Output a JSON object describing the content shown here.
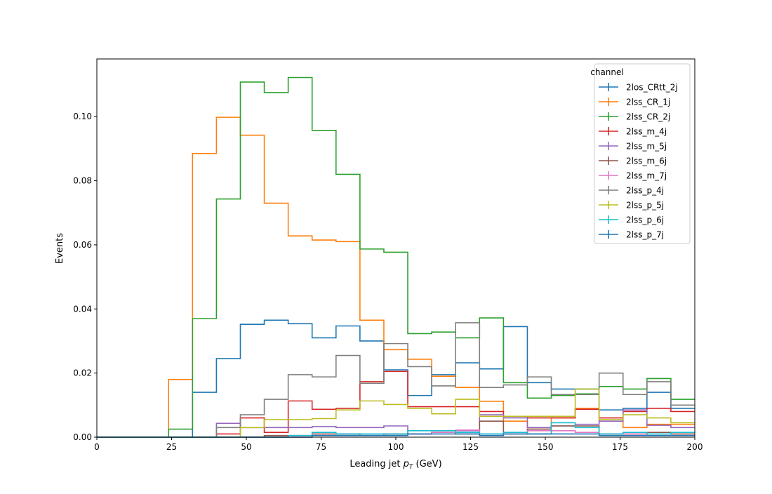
{
  "chart_data": {
    "type": "histogram-step",
    "title": "",
    "xlabel_prefix": "Leading jet",
    "xlabel_symbol": "p",
    "xlabel_subscript": "T",
    "xlabel_unit": "(GeV)",
    "ylabel": "Events",
    "xlim": [
      0,
      200
    ],
    "ylim": [
      0,
      0.118
    ],
    "x_ticks": [
      0,
      25,
      50,
      75,
      100,
      125,
      150,
      175,
      200
    ],
    "x_tick_labels": [
      "0",
      "25",
      "50",
      "75",
      "100",
      "125",
      "150",
      "175",
      "200"
    ],
    "y_ticks": [
      0,
      0.02,
      0.04,
      0.06,
      0.08,
      0.1
    ],
    "y_tick_labels": [
      "0.00",
      "0.02",
      "0.04",
      "0.06",
      "0.08",
      "0.10"
    ],
    "grid": false,
    "legend": {
      "title": "channel",
      "placement": "top-right"
    },
    "bin_edges": [
      0,
      8,
      16,
      24,
      32,
      40,
      48,
      56,
      64,
      72,
      80,
      88,
      96,
      104,
      112,
      120,
      128,
      136,
      144,
      152,
      160,
      168,
      176,
      184,
      192,
      200
    ],
    "series": [
      {
        "name": "2los_CRtt_2j",
        "color": "#1f77b4",
        "values": [
          0,
          0,
          0,
          0,
          0.014,
          0.0245,
          0.0352,
          0.0365,
          0.0354,
          0.031,
          0.0347,
          0.03,
          0.021,
          0.013,
          0.0195,
          0.0232,
          0.0213,
          0.0345,
          0.017,
          0.015,
          0.015,
          0.0085,
          0.009,
          0.014,
          0.009
        ]
      },
      {
        "name": "2lss_CR_1j",
        "color": "#ff7f0e",
        "values": [
          0,
          0,
          0,
          0.018,
          0.0885,
          0.0998,
          0.0942,
          0.073,
          0.0628,
          0.0615,
          0.061,
          0.0365,
          0.0273,
          0.0243,
          0.019,
          0.0155,
          0.0112,
          0.005,
          0.003,
          0.006,
          0.009,
          0.005,
          0.003,
          0.004,
          0.004
        ]
      },
      {
        "name": "2lss_CR_2j",
        "color": "#2ca02c",
        "values": [
          0,
          0,
          0,
          0.0025,
          0.037,
          0.0743,
          0.1108,
          0.1075,
          0.1122,
          0.0957,
          0.082,
          0.0587,
          0.0577,
          0.0323,
          0.0328,
          0.031,
          0.0372,
          0.017,
          0.0122,
          0.013,
          0.0135,
          0.0158,
          0.015,
          0.0183,
          0.0118
        ]
      },
      {
        "name": "2lss_m_4j",
        "color": "#d62728",
        "values": [
          0,
          0,
          0,
          0,
          0,
          0.001,
          0.006,
          0.0015,
          0.0113,
          0.0087,
          0.009,
          0.0173,
          0.0205,
          0.0095,
          0.0095,
          0.0095,
          0.008,
          0.0065,
          0.006,
          0.006,
          0.0087,
          0.006,
          0.008,
          0.009,
          0.008
        ]
      },
      {
        "name": "2lss_m_5j",
        "color": "#9467bd",
        "values": [
          0,
          0,
          0,
          0,
          0,
          0.0043,
          0.003,
          0.003,
          0.003,
          0.0033,
          0.003,
          0.003,
          0.0035,
          0.001,
          0.0015,
          0.002,
          0.007,
          0.006,
          0.003,
          0.0035,
          0.004,
          0.005,
          0.0085,
          0.0037,
          0.003
        ]
      },
      {
        "name": "2lss_m_6j",
        "color": "#8c564b",
        "values": [
          0,
          0,
          0,
          0,
          0,
          0,
          0,
          0.0005,
          0.0005,
          0.001,
          0.001,
          0.0005,
          0.001,
          0.001,
          0.0015,
          0.001,
          0.005,
          0.001,
          0.0025,
          0.0035,
          0.0035,
          0.001,
          0.001,
          0.0015,
          0.001
        ]
      },
      {
        "name": "2lss_m_7j",
        "color": "#e377c2",
        "values": [
          0,
          0,
          0,
          0,
          0,
          0,
          0,
          0,
          0,
          0.0005,
          0.0005,
          0.0005,
          0.0005,
          0.001,
          0.0015,
          0.0022,
          0.001,
          0.001,
          0.002,
          0.002,
          0.0015,
          0.001,
          0.001,
          0.0005,
          0.0005
        ]
      },
      {
        "name": "2lss_p_4j",
        "color": "#7f7f7f",
        "values": [
          0,
          0,
          0,
          0,
          0,
          0.003,
          0.007,
          0.0118,
          0.0195,
          0.0188,
          0.0255,
          0.0168,
          0.0292,
          0.022,
          0.016,
          0.0357,
          0.0155,
          0.0163,
          0.0188,
          0.0133,
          0.0133,
          0.02,
          0.0133,
          0.0173,
          0.01
        ]
      },
      {
        "name": "2lss_p_5j",
        "color": "#bcbd22",
        "values": [
          0,
          0,
          0,
          0,
          0,
          0,
          0.003,
          0.0055,
          0.0055,
          0.0058,
          0.0085,
          0.0113,
          0.0102,
          0.009,
          0.0073,
          0.0118,
          0.0065,
          0.0065,
          0.0065,
          0.0065,
          0.015,
          0.0055,
          0.007,
          0.006,
          0.0045
        ]
      },
      {
        "name": "2lss_p_6j",
        "color": "#17becf",
        "values": [
          0,
          0,
          0,
          0,
          0,
          0,
          0,
          0,
          0.0005,
          0.0015,
          0.001,
          0.001,
          0.001,
          0.002,
          0.002,
          0.0015,
          0.001,
          0.0015,
          0.001,
          0.0045,
          0.003,
          0.001,
          0.0015,
          0.001,
          0.0015
        ]
      },
      {
        "name": "2lss_p_7j",
        "color": "#1f77b4",
        "values": [
          0,
          0,
          0,
          0,
          0,
          0,
          0,
          0,
          0,
          0.0005,
          0.0005,
          0.0005,
          0.0005,
          0.001,
          0.001,
          0.001,
          0.0005,
          0.001,
          0.001,
          0.001,
          0.001,
          0.0005,
          0.0005,
          0.0005,
          0.0005
        ]
      }
    ]
  }
}
